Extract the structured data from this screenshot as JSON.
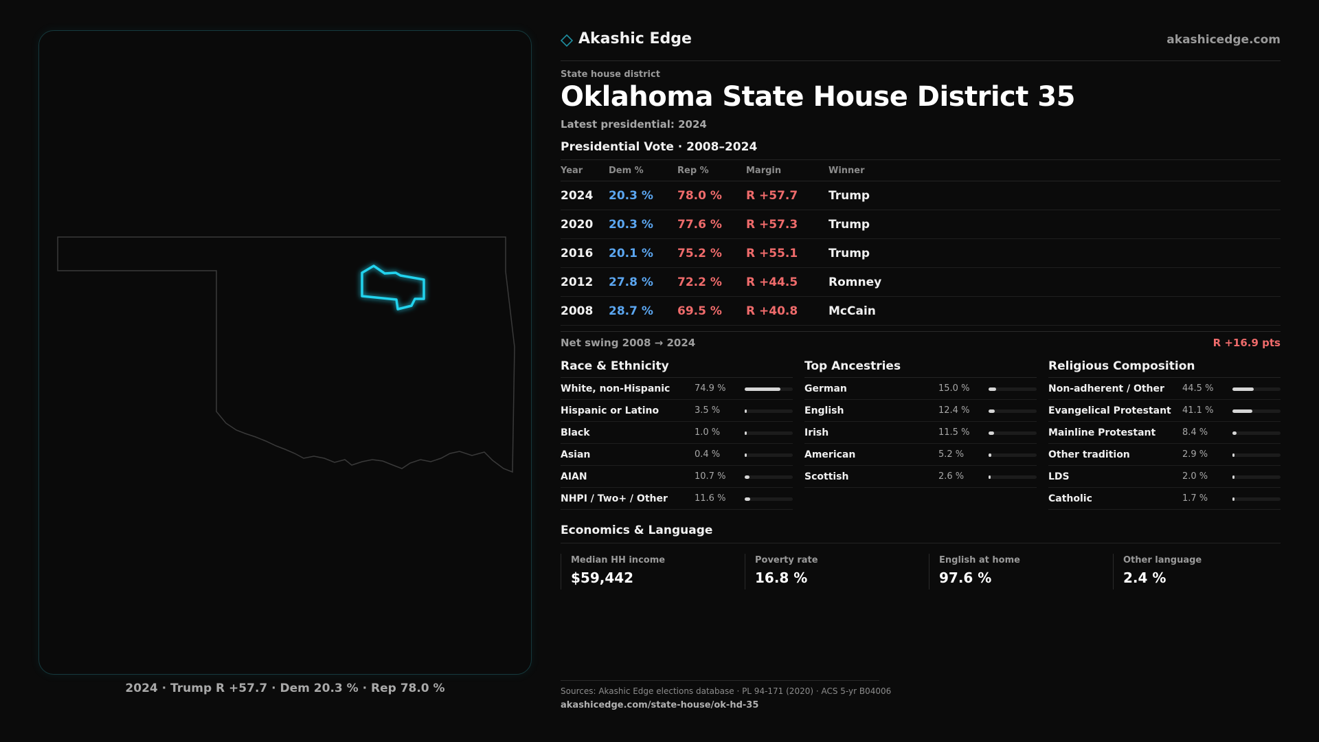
{
  "brand": {
    "name": "Akashic Edge",
    "url": "akashicedge.com",
    "accent": "#00c8e0"
  },
  "header": {
    "eyebrow": "State house district",
    "title": "Oklahoma State House District 35",
    "latest": "Latest presidential: 2024"
  },
  "presidential": {
    "title": "Presidential Vote · 2008–2024",
    "columns": [
      "Year",
      "Dem %",
      "Rep %",
      "Margin",
      "Winner"
    ],
    "rows": [
      {
        "year": "2024",
        "dem": "20.3 %",
        "rep": "78.0 %",
        "margin": "R +57.7",
        "winner": "Trump"
      },
      {
        "year": "2020",
        "dem": "20.3 %",
        "rep": "77.6 %",
        "margin": "R +57.3",
        "winner": "Trump"
      },
      {
        "year": "2016",
        "dem": "20.1 %",
        "rep": "75.2 %",
        "margin": "R +55.1",
        "winner": "Trump"
      },
      {
        "year": "2012",
        "dem": "27.8 %",
        "rep": "72.2 %",
        "margin": "R +44.5",
        "winner": "Romney"
      },
      {
        "year": "2008",
        "dem": "28.7 %",
        "rep": "69.5 %",
        "margin": "R +40.8",
        "winner": "McCain"
      }
    ],
    "colors": {
      "dem": "#5ba6f0",
      "rep": "#ef6b6b"
    }
  },
  "swing": {
    "label": "Net swing 2008 → 2024",
    "value": "R +16.9 pts"
  },
  "race": {
    "title": "Race & Ethnicity",
    "items": [
      {
        "label": "White, non-Hispanic",
        "value": "74.9 %",
        "pct": 74.9
      },
      {
        "label": "Hispanic or Latino",
        "value": "3.5 %",
        "pct": 3.5
      },
      {
        "label": "Black",
        "value": "1.0 %",
        "pct": 1.0
      },
      {
        "label": "Asian",
        "value": "0.4 %",
        "pct": 0.4
      },
      {
        "label": "AIAN",
        "value": "10.7 %",
        "pct": 10.7
      },
      {
        "label": "NHPI / Two+ / Other",
        "value": "11.6 %",
        "pct": 11.6
      }
    ]
  },
  "ancestry": {
    "title": "Top Ancestries",
    "items": [
      {
        "label": "German",
        "value": "15.0 %",
        "pct": 15.0
      },
      {
        "label": "English",
        "value": "12.4 %",
        "pct": 12.4
      },
      {
        "label": "Irish",
        "value": "11.5 %",
        "pct": 11.5
      },
      {
        "label": "American",
        "value": "5.2 %",
        "pct": 5.2
      },
      {
        "label": "Scottish",
        "value": "2.6 %",
        "pct": 2.6
      }
    ]
  },
  "religion": {
    "title": "Religious Composition",
    "items": [
      {
        "label": "Non-adherent / Other",
        "value": "44.5 %",
        "pct": 44.5
      },
      {
        "label": "Evangelical Protestant",
        "value": "41.1 %",
        "pct": 41.1
      },
      {
        "label": "Mainline Protestant",
        "value": "8.4 %",
        "pct": 8.4
      },
      {
        "label": "Other tradition",
        "value": "2.9 %",
        "pct": 2.9
      },
      {
        "label": "LDS",
        "value": "2.0 %",
        "pct": 2.0
      },
      {
        "label": "Catholic",
        "value": "1.7 %",
        "pct": 1.7
      }
    ]
  },
  "economics": {
    "title": "Economics & Language",
    "kpis": [
      {
        "label": "Median HH income",
        "value": "$59,442"
      },
      {
        "label": "Poverty rate",
        "value": "16.8 %"
      },
      {
        "label": "English at home",
        "value": "97.6 %"
      },
      {
        "label": "Other language",
        "value": "2.4 %"
      }
    ]
  },
  "map": {
    "caption": "2024 · Trump R +57.7 · Dem 20.3 % · Rep 78.0 %",
    "district_color": "#22d3ee",
    "state_outline_color": "#3a3a3a"
  },
  "footer": {
    "sources": "Sources: Akashic Edge elections database · PL 94-171 (2020) · ACS 5-yr B04006",
    "url": "akashicedge.com/state-house/ok-hd-35"
  }
}
